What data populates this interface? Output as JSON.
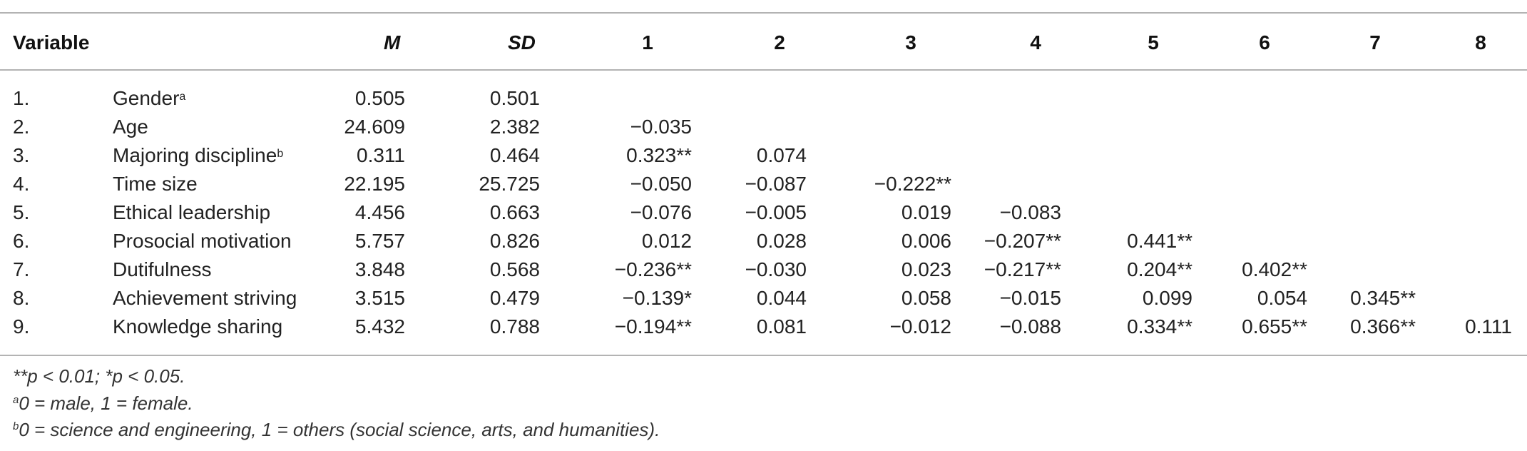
{
  "table": {
    "headers": {
      "variable": "Variable",
      "mean": "M",
      "sd": "SD",
      "cols": [
        "1",
        "2",
        "3",
        "4",
        "5",
        "6",
        "7",
        "8"
      ]
    },
    "rows": [
      {
        "num": "1.",
        "name": "Gender",
        "sup": "a",
        "m": "0.505",
        "sd": "0.501",
        "c": []
      },
      {
        "num": "2.",
        "name": "Age",
        "sup": "",
        "m": "24.609",
        "sd": "2.382",
        "c": [
          "−0.035"
        ]
      },
      {
        "num": "3.",
        "name": "Majoring discipline",
        "sup": "b",
        "m": "0.311",
        "sd": "0.464",
        "c": [
          "0.323**",
          "0.074"
        ]
      },
      {
        "num": "4.",
        "name": "Time size",
        "sup": "",
        "m": "22.195",
        "sd": "25.725",
        "c": [
          "−0.050",
          "−0.087",
          "−0.222**"
        ]
      },
      {
        "num": "5.",
        "name": "Ethical leadership",
        "sup": "",
        "m": "4.456",
        "sd": "0.663",
        "c": [
          "−0.076",
          "−0.005",
          "0.019",
          "−0.083"
        ]
      },
      {
        "num": "6.",
        "name": "Prosocial motivation",
        "sup": "",
        "m": "5.757",
        "sd": "0.826",
        "c": [
          "0.012",
          "0.028",
          "0.006",
          "−0.207**",
          "0.441**"
        ]
      },
      {
        "num": "7.",
        "name": "Dutifulness",
        "sup": "",
        "m": "3.848",
        "sd": "0.568",
        "c": [
          "−0.236**",
          "−0.030",
          "0.023",
          "−0.217**",
          "0.204**",
          "0.402**"
        ]
      },
      {
        "num": "8.",
        "name": "Achievement striving",
        "sup": "",
        "m": "3.515",
        "sd": "0.479",
        "c": [
          "−0.139*",
          "0.044",
          "0.058",
          "−0.015",
          "0.099",
          "0.054",
          "0.345**"
        ]
      },
      {
        "num": "9.",
        "name": "Knowledge sharing",
        "sup": "",
        "m": "5.432",
        "sd": "0.788",
        "c": [
          "−0.194**",
          "0.081",
          "−0.012",
          "−0.088",
          "0.334**",
          "0.655**",
          "0.366**",
          "0.111"
        ]
      }
    ]
  },
  "notes": {
    "significance": "**p < 0.01; *p < 0.05.",
    "a_mark": "a",
    "a_text": "0 = male, 1 = female.",
    "b_mark": "b",
    "b_text": "0 = science and engineering, 1 = others (social science, arts, and humanities)."
  }
}
